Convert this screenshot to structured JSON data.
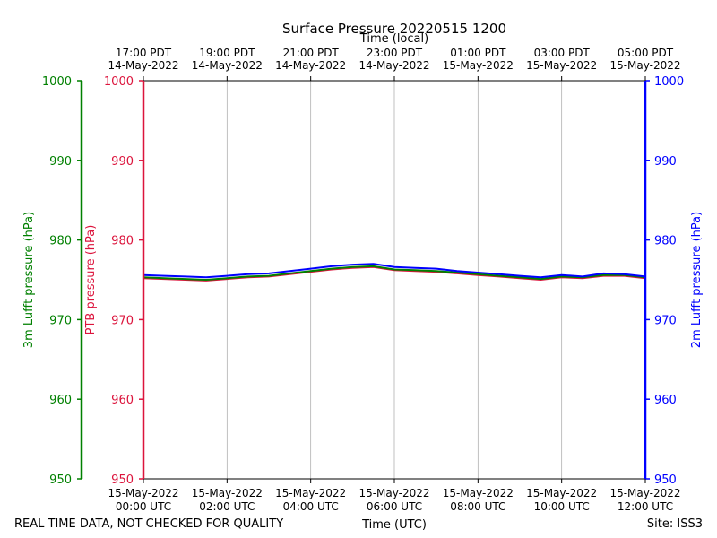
{
  "chart_data": {
    "type": "line",
    "title": "Surface Pressure 20220515 1200",
    "top_axis_label": "Time (local)",
    "xlabel": "Time (UTC)",
    "footer_left": "REAL TIME DATA, NOT CHECKED FOR QUALITY",
    "footer_right": "Site: ISS3",
    "xlim": [
      0,
      12
    ],
    "ylim": [
      950,
      1000
    ],
    "grid": "vertical",
    "y_ticks": [
      950,
      960,
      970,
      980,
      990,
      1000
    ],
    "x_ticks_utc": [
      {
        "x": 0,
        "line1": "15-May-2022",
        "line2": "00:00 UTC"
      },
      {
        "x": 2,
        "line1": "15-May-2022",
        "line2": "02:00 UTC"
      },
      {
        "x": 4,
        "line1": "15-May-2022",
        "line2": "04:00 UTC"
      },
      {
        "x": 6,
        "line1": "15-May-2022",
        "line2": "06:00 UTC"
      },
      {
        "x": 8,
        "line1": "15-May-2022",
        "line2": "08:00 UTC"
      },
      {
        "x": 10,
        "line1": "15-May-2022",
        "line2": "10:00 UTC"
      },
      {
        "x": 12,
        "line1": "15-May-2022",
        "line2": "12:00 UTC"
      }
    ],
    "x_ticks_local": [
      {
        "x": 0,
        "line1": "17:00 PDT",
        "line2": "14-May-2022"
      },
      {
        "x": 2,
        "line1": "19:00 PDT",
        "line2": "14-May-2022"
      },
      {
        "x": 4,
        "line1": "21:00 PDT",
        "line2": "14-May-2022"
      },
      {
        "x": 6,
        "line1": "23:00 PDT",
        "line2": "14-May-2022"
      },
      {
        "x": 8,
        "line1": "01:00 PDT",
        "line2": "15-May-2022"
      },
      {
        "x": 10,
        "line1": "03:00 PDT",
        "line2": "15-May-2022"
      },
      {
        "x": 12,
        "line1": "05:00 PDT",
        "line2": "15-May-2022"
      }
    ],
    "y_axes": [
      {
        "id": "lufft3m",
        "label": "3m Lufft pressure (hPa)",
        "color": "#008000",
        "side": "outer-left"
      },
      {
        "id": "ptb",
        "label": "PTB pressure (hPa)",
        "color": "#dc143c",
        "side": "left"
      },
      {
        "id": "lufft2m",
        "label": "2m Lufft pressure (hPa)",
        "color": "#0000ff",
        "side": "right"
      }
    ],
    "series": [
      {
        "axis": "ptb",
        "color": "#dc143c",
        "x": [
          0,
          0.5,
          1,
          1.5,
          2,
          2.5,
          3,
          3.5,
          4,
          4.5,
          5,
          5.5,
          6,
          6.5,
          7,
          7.5,
          8,
          8.5,
          9,
          9.5,
          10,
          10.5,
          11,
          11.5,
          12
        ],
        "values": [
          975.2,
          975.1,
          975.0,
          974.9,
          975.1,
          975.3,
          975.4,
          975.7,
          976.0,
          976.3,
          976.5,
          976.6,
          976.2,
          976.1,
          976.0,
          975.8,
          975.6,
          975.4,
          975.2,
          975.0,
          975.3,
          975.2,
          975.5,
          975.5,
          975.2
        ]
      },
      {
        "axis": "lufft3m",
        "color": "#008000",
        "x": [
          0,
          0.5,
          1,
          1.5,
          2,
          2.5,
          3,
          3.5,
          4,
          4.5,
          5,
          5.5,
          6,
          6.5,
          7,
          7.5,
          8,
          8.5,
          9,
          9.5,
          10,
          10.5,
          11,
          11.5,
          12
        ],
        "values": [
          975.3,
          975.2,
          975.1,
          975.0,
          975.2,
          975.4,
          975.5,
          975.8,
          976.1,
          976.4,
          976.6,
          976.7,
          976.3,
          976.2,
          976.1,
          975.9,
          975.7,
          975.5,
          975.3,
          975.1,
          975.4,
          975.3,
          975.6,
          975.6,
          975.3
        ]
      },
      {
        "axis": "lufft2m",
        "color": "#0000ff",
        "x": [
          0,
          0.5,
          1,
          1.5,
          2,
          2.5,
          3,
          3.5,
          4,
          4.5,
          5,
          5.5,
          6,
          6.5,
          7,
          7.5,
          8,
          8.5,
          9,
          9.5,
          10,
          10.5,
          11,
          11.5,
          12
        ],
        "values": [
          975.6,
          975.5,
          975.4,
          975.3,
          975.5,
          975.7,
          975.8,
          976.1,
          976.4,
          976.7,
          976.9,
          977.0,
          976.6,
          976.5,
          976.4,
          976.1,
          975.9,
          975.7,
          975.5,
          975.3,
          975.6,
          975.4,
          975.8,
          975.7,
          975.4
        ]
      }
    ]
  }
}
